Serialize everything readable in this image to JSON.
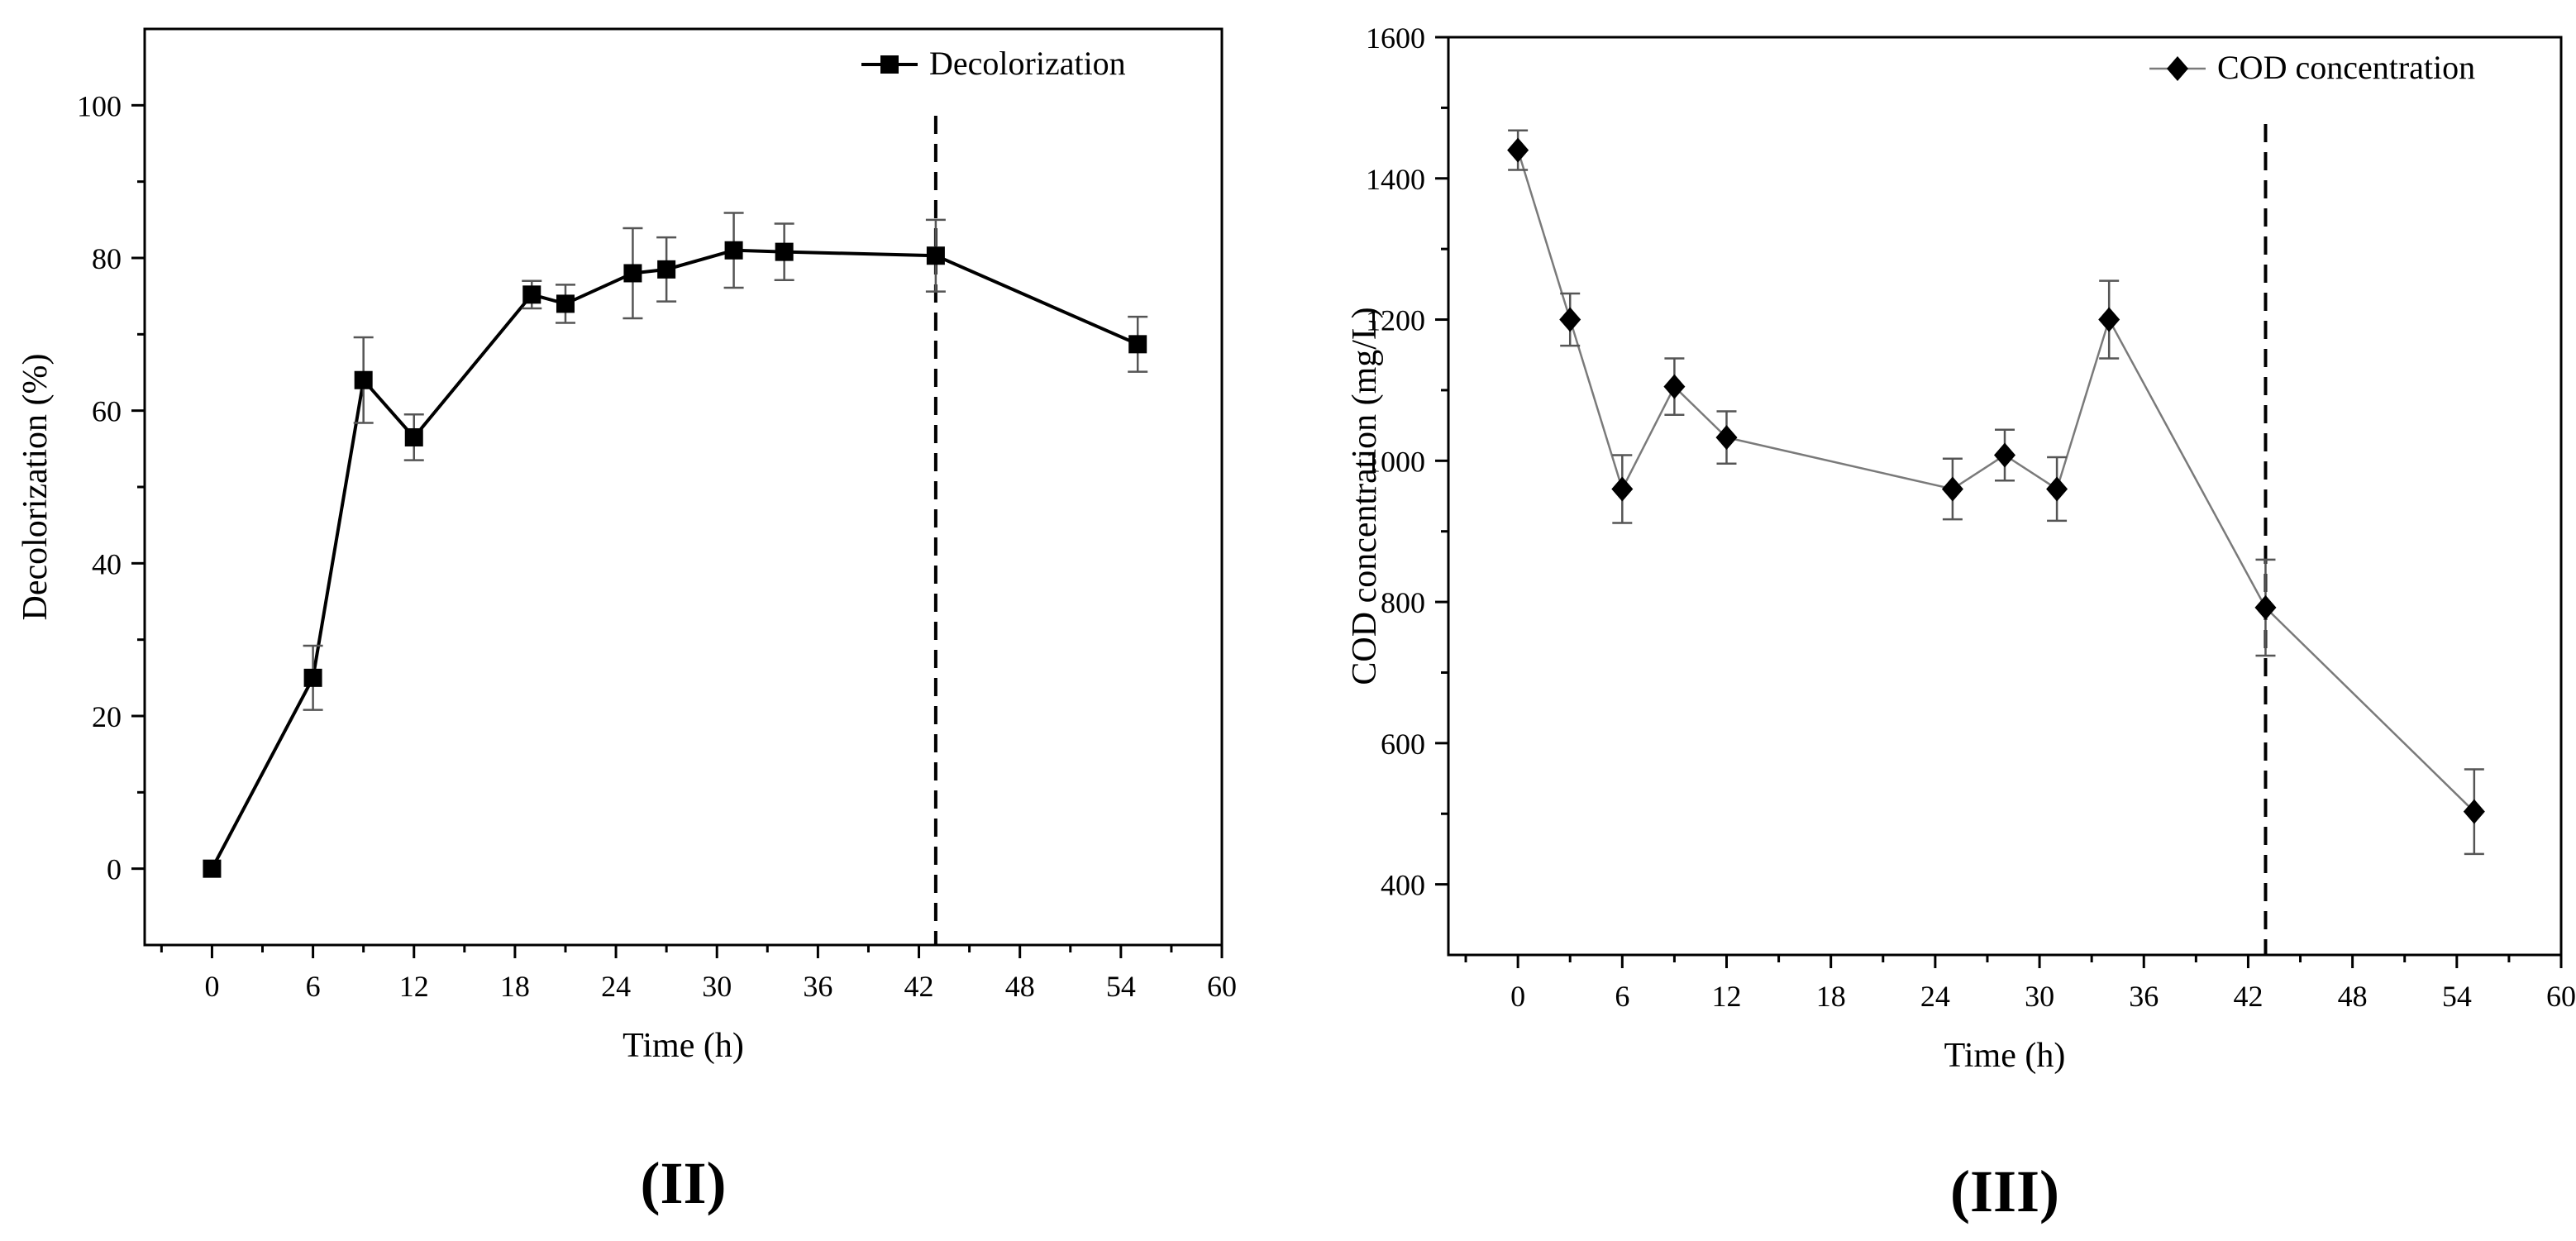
{
  "chart_data": [
    {
      "type": "line",
      "panel_label": "(II)",
      "xlabel": "Time (h)",
      "ylabel": "Decolorization (%)",
      "xlim": [
        -4,
        60
      ],
      "ylim": [
        -10,
        110
      ],
      "xticks": [
        0,
        6,
        12,
        18,
        24,
        30,
        36,
        42,
        48,
        54,
        60
      ],
      "yticks": [
        0,
        20,
        40,
        60,
        80,
        100
      ],
      "marker": "square",
      "line_color": "#000000",
      "vline_x": 43,
      "legend": {
        "label": "Decolorization",
        "position": "top-right"
      },
      "series": [
        {
          "name": "Decolorization",
          "x": [
            0,
            6,
            9,
            12,
            19,
            21,
            25,
            27,
            31,
            34,
            43,
            55
          ],
          "values": [
            0,
            25,
            64,
            56.5,
            75.2,
            74,
            78,
            78.5,
            81,
            80.8,
            80.3,
            68.7
          ],
          "error": [
            0,
            4.2,
            5.6,
            3,
            1.8,
            2.5,
            5.9,
            4.2,
            4.9,
            3.7,
            4.7,
            3.6
          ]
        }
      ]
    },
    {
      "type": "line",
      "panel_label": "(III)",
      "xlabel": "Time (h)",
      "ylabel": "COD concentration (mg/L)",
      "xlim": [
        -4,
        60
      ],
      "ylim": [
        300,
        1600
      ],
      "xticks": [
        0,
        6,
        12,
        18,
        24,
        30,
        36,
        42,
        48,
        54,
        60
      ],
      "yticks": [
        400,
        600,
        800,
        1000,
        1200,
        1400,
        1600
      ],
      "marker": "diamond",
      "line_color": "#7a7a7a",
      "vline_x": 43,
      "legend": {
        "label": "COD concentration",
        "position": "top-right"
      },
      "series": [
        {
          "name": "COD concentration",
          "x": [
            0,
            3,
            6,
            9,
            12,
            25,
            28,
            31,
            34,
            43,
            55
          ],
          "values": [
            1440,
            1200,
            960,
            1105,
            1033,
            960,
            1008,
            960,
            1200,
            792,
            503
          ],
          "error": [
            28,
            37,
            48,
            40,
            37,
            43,
            36,
            45,
            55,
            68,
            60
          ]
        }
      ]
    }
  ]
}
